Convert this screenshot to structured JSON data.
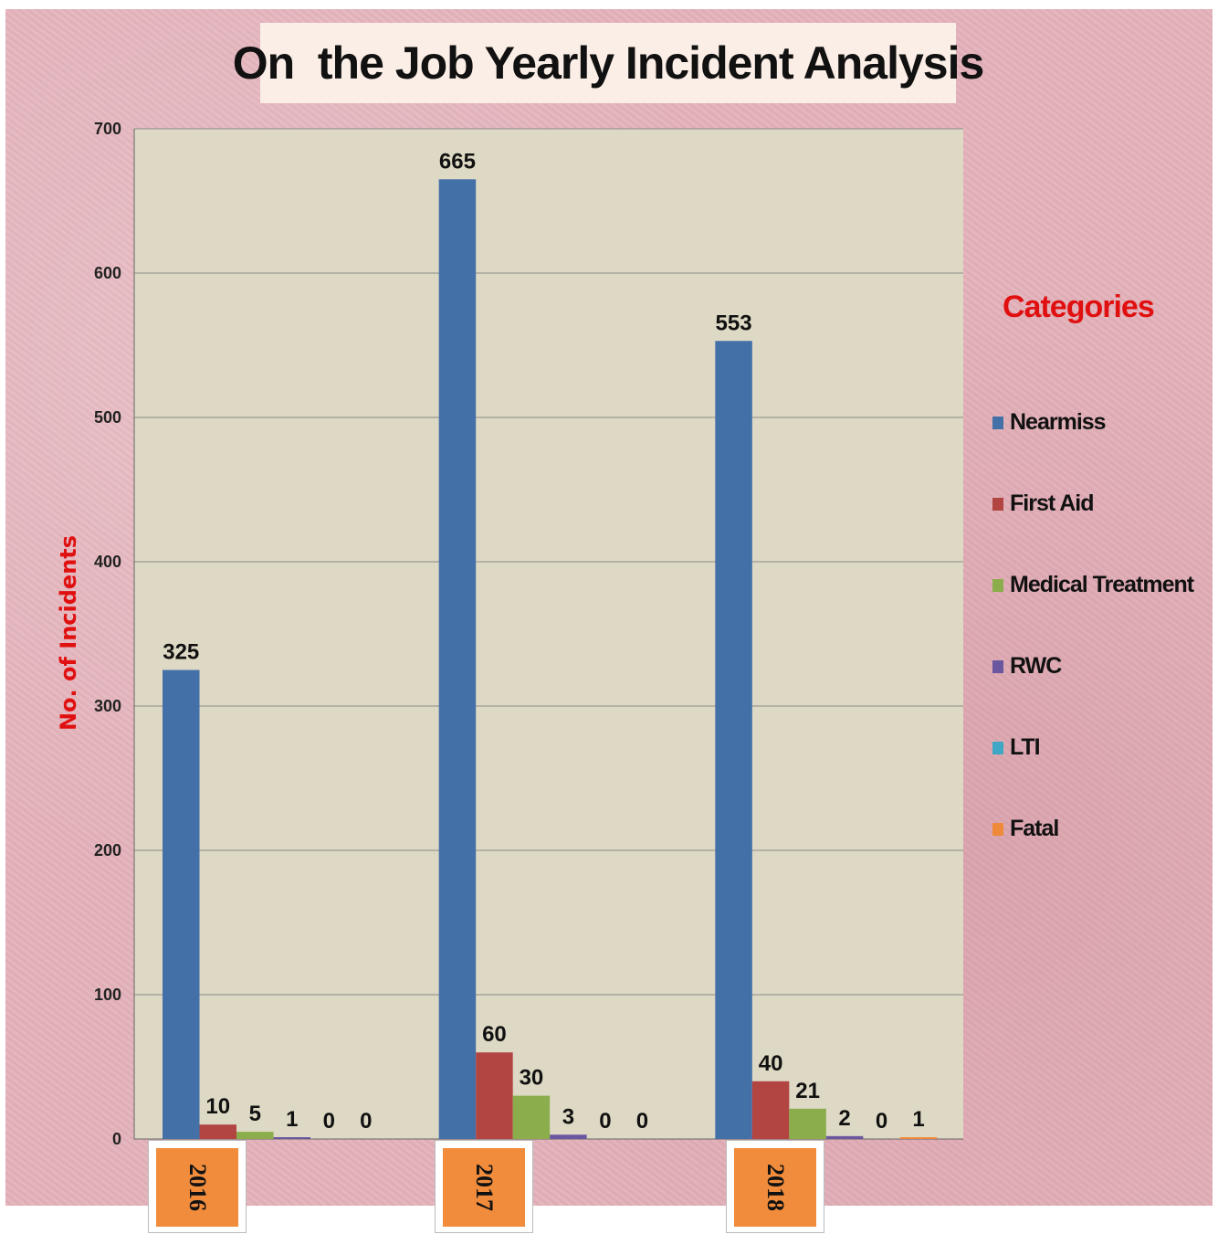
{
  "chart_data": {
    "type": "bar",
    "title": "On  the Job Yearly Incident Analysis",
    "ylabel": "No. of Incidents",
    "ylim": [
      0,
      700
    ],
    "yticks": [
      "0",
      "100",
      "200",
      "300",
      "400",
      "500",
      "600",
      "700"
    ],
    "categories": [
      "2016",
      "2017",
      "2018"
    ],
    "legend_title": "Categories",
    "legend_position": "right",
    "grid": true,
    "series": [
      {
        "name": "Nearmiss",
        "color": "#4470a8",
        "values": [
          325,
          665,
          553
        ]
      },
      {
        "name": "First Aid",
        "color": "#b24442",
        "values": [
          10,
          60,
          40
        ]
      },
      {
        "name": "Medical Treatment",
        "color": "#8cad4c",
        "values": [
          5,
          30,
          21
        ]
      },
      {
        "name": "RWC",
        "color": "#6b56a0",
        "values": [
          1,
          3,
          2
        ]
      },
      {
        "name": "LTI",
        "color": "#3fa7c3",
        "values": [
          0,
          0,
          0
        ]
      },
      {
        "name": "Fatal",
        "color": "#ef8a3a",
        "values": [
          0,
          0,
          1
        ]
      }
    ],
    "colors": {
      "plot_background": "#ddd9c4",
      "legend_title": "#e01010",
      "axis_label": "#e01010",
      "year_box": "#f08c3c"
    }
  }
}
